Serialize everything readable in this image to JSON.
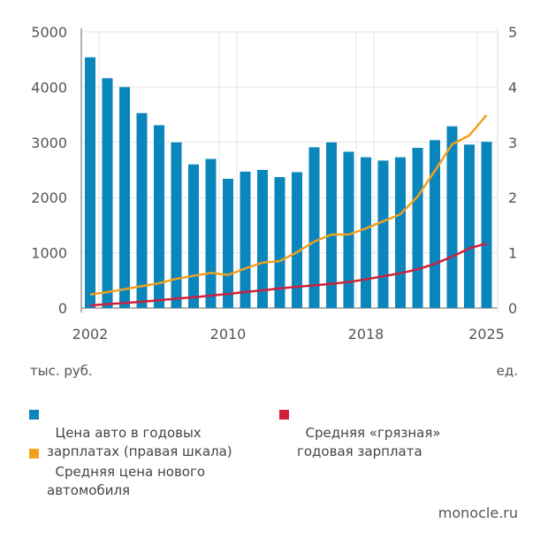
{
  "chart_data": {
    "type": "bar+line",
    "x": [
      2002,
      2003,
      2004,
      2005,
      2006,
      2007,
      2008,
      2009,
      2010,
      2011,
      2012,
      2013,
      2014,
      2015,
      2016,
      2017,
      2018,
      2019,
      2020,
      2021,
      2022,
      2023,
      2024,
      2025
    ],
    "x_tick_labels": [
      "2002",
      "2010",
      "2018",
      "2025"
    ],
    "left_axis": {
      "label": "тыс. руб.",
      "ylim": [
        0,
        5000
      ],
      "ticks": [
        "0",
        "1000",
        "2000",
        "3000",
        "4000",
        "5000"
      ]
    },
    "right_axis": {
      "label": "ед.",
      "ylim": [
        0,
        5
      ],
      "ticks": [
        "0",
        "1",
        "2",
        "3",
        "4",
        "5"
      ]
    },
    "grid": true,
    "legend_placement": "bottom",
    "series": [
      {
        "name": "Цена авто в годовых зарплатах (правая шкала)",
        "type": "bar",
        "axis": "right",
        "color": "#0a86bd",
        "values": [
          4.54,
          4.16,
          4.0,
          3.53,
          3.31,
          3.0,
          2.6,
          2.7,
          2.34,
          2.47,
          2.5,
          2.37,
          2.46,
          2.91,
          3.0,
          2.83,
          2.73,
          2.67,
          2.73,
          2.9,
          3.04,
          3.29,
          2.96,
          3.01
        ]
      },
      {
        "name": "Средняя цена нового автомобиля",
        "type": "line",
        "axis": "left",
        "color": "#f0a01e",
        "values": [
          245,
          288,
          341,
          396,
          449,
          529,
          582,
          636,
          598,
          716,
          822,
          849,
          1010,
          1202,
          1330,
          1330,
          1442,
          1570,
          1699,
          2019,
          2484,
          2965,
          3125,
          3494
        ]
      },
      {
        "name": "Средняя «грязная» годовая зарплата",
        "type": "line",
        "axis": "left",
        "color": "#d0203a",
        "values": [
          48,
          70,
          90,
          115,
          140,
          170,
          195,
          225,
          255,
          290,
          320,
          355,
          385,
          410,
          438,
          470,
          520,
          575,
          630,
          700,
          800,
          930,
          1080,
          1170
        ]
      }
    ]
  },
  "legend": {
    "bars": "Цена авто в годовых\nзарплатах (правая шкала)",
    "price": "Средняя цена нового\nавтомобиля",
    "salary": "Средняя «грязная»\nгодовая зарплата"
  },
  "source": "monocle.ru"
}
